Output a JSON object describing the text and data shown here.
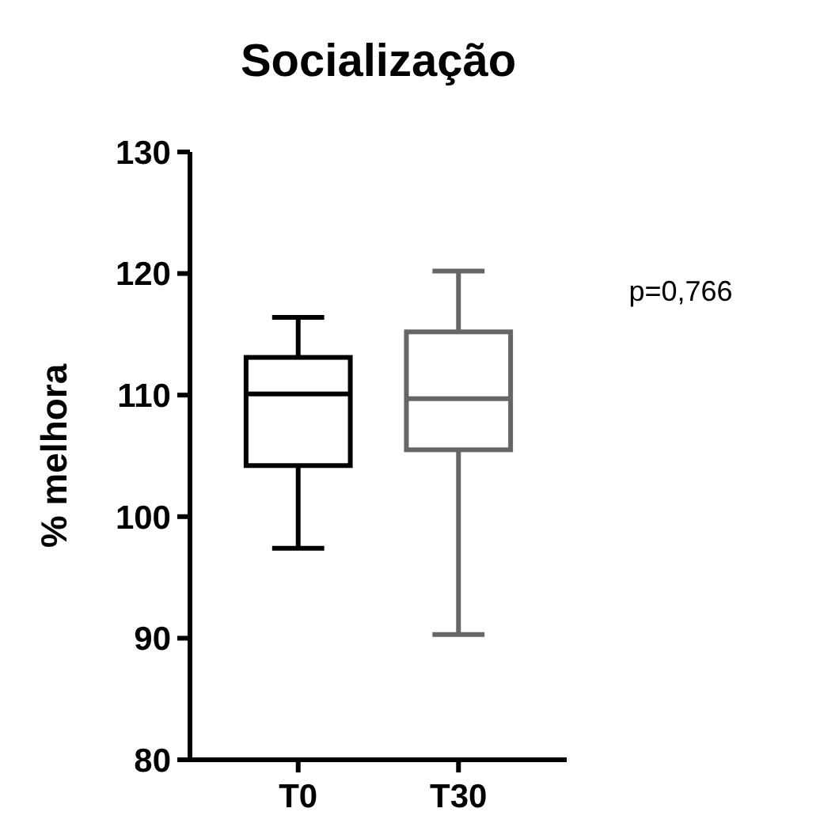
{
  "chart_data": {
    "type": "box",
    "title": "Socialização",
    "ylabel": "% melhora",
    "categories": [
      "T0",
      "T30"
    ],
    "colors": [
      "#000000",
      "#666666"
    ],
    "boxes": [
      {
        "low": 97.4,
        "q1": 104.2,
        "median": 110.1,
        "q3": 113.1,
        "high": 116.4
      },
      {
        "low": 90.3,
        "q1": 105.5,
        "median": 109.7,
        "q3": 115.2,
        "high": 120.2
      }
    ],
    "ylim": [
      80,
      130
    ],
    "yticks": [
      80,
      90,
      100,
      110,
      120,
      130
    ],
    "grid": false,
    "annotations": [
      "p=0,766"
    ]
  }
}
